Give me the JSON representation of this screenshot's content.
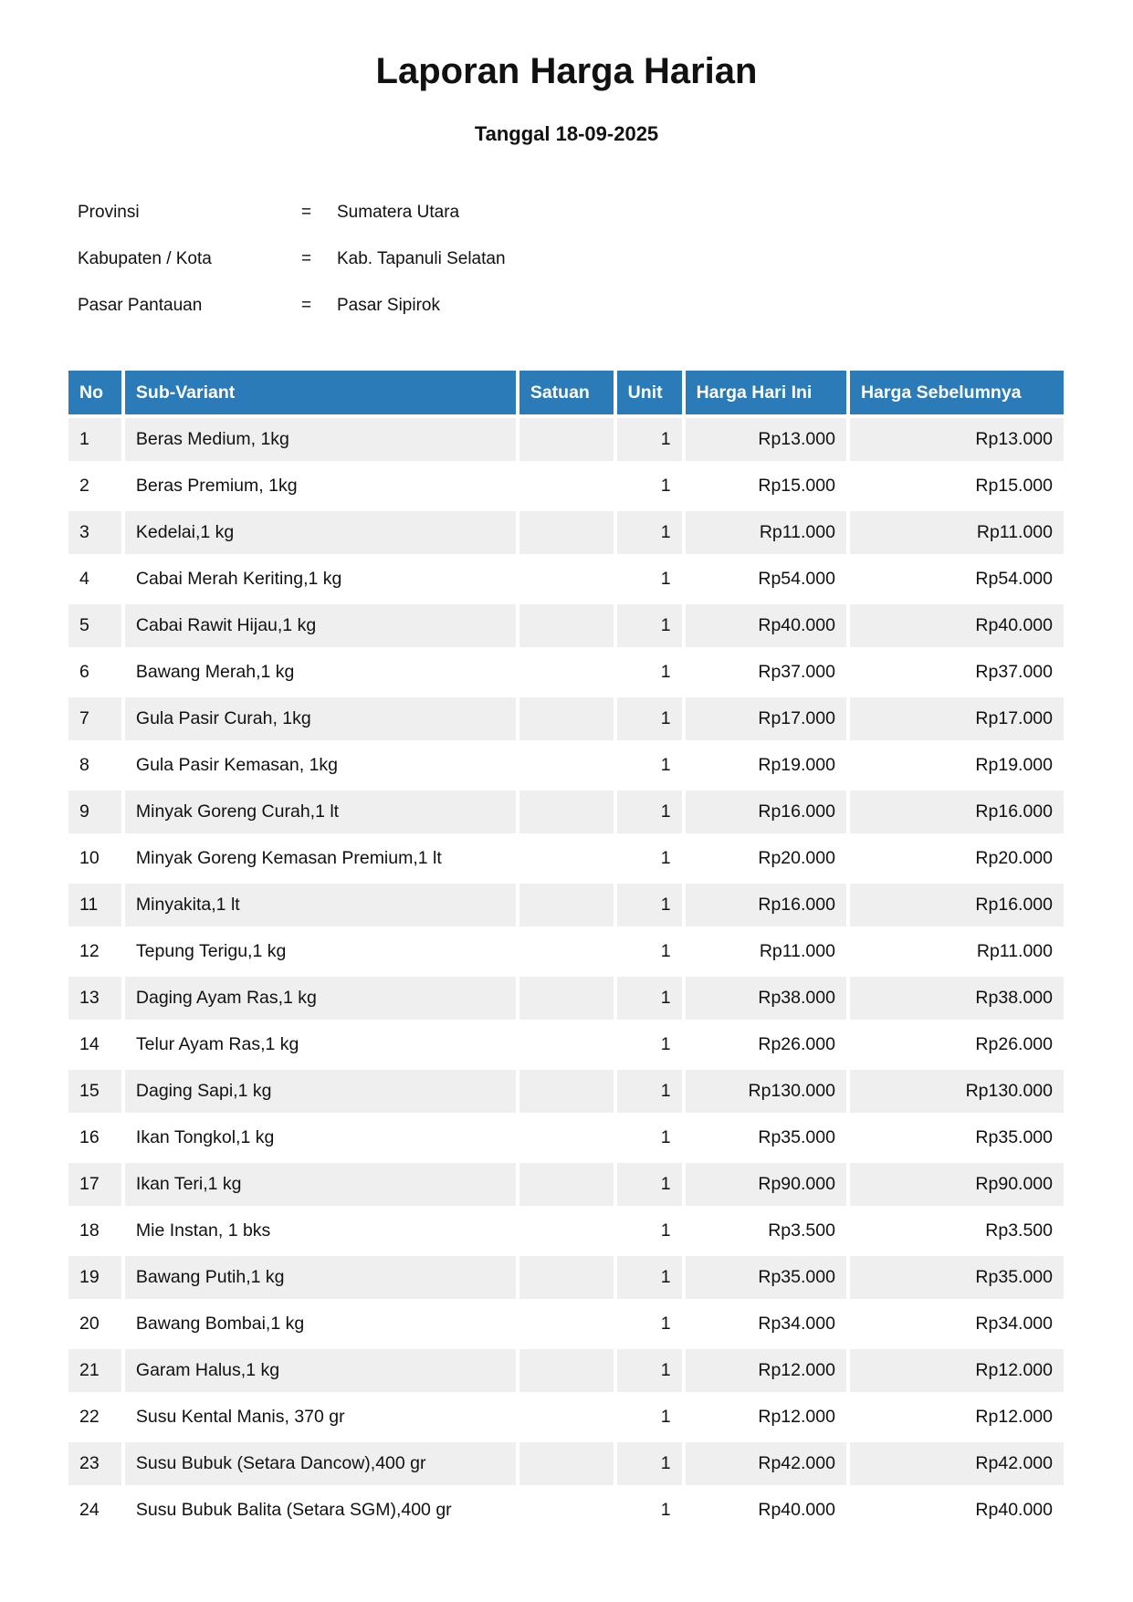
{
  "report": {
    "title": "Laporan Harga Harian",
    "date_line": "Tanggal 18-09-2025"
  },
  "info": [
    {
      "label": "Provinsi",
      "sep": "=",
      "value": "Sumatera Utara"
    },
    {
      "label": "Kabupaten / Kota",
      "sep": "=",
      "value": "Kab. Tapanuli Selatan"
    },
    {
      "label": "Pasar Pantauan",
      "sep": "=",
      "value": "Pasar Sipirok"
    }
  ],
  "table": {
    "header_color": "#2a7bb7",
    "columns": [
      "No",
      "Sub-Variant",
      "Satuan",
      "Unit",
      "Harga Hari Ini",
      "Harga Sebelumnya"
    ],
    "rows": [
      [
        "1",
        "Beras Medium, 1kg",
        "",
        "1",
        "Rp13.000",
        "Rp13.000"
      ],
      [
        "2",
        "Beras Premium, 1kg",
        "",
        "1",
        "Rp15.000",
        "Rp15.000"
      ],
      [
        "3",
        "Kedelai,1 kg",
        "",
        "1",
        "Rp11.000",
        "Rp11.000"
      ],
      [
        "4",
        "Cabai Merah Keriting,1 kg",
        "",
        "1",
        "Rp54.000",
        "Rp54.000"
      ],
      [
        "5",
        "Cabai Rawit Hijau,1 kg",
        "",
        "1",
        "Rp40.000",
        "Rp40.000"
      ],
      [
        "6",
        "Bawang Merah,1 kg",
        "",
        "1",
        "Rp37.000",
        "Rp37.000"
      ],
      [
        "7",
        "Gula Pasir Curah, 1kg",
        "",
        "1",
        "Rp17.000",
        "Rp17.000"
      ],
      [
        "8",
        "Gula Pasir Kemasan, 1kg",
        "",
        "1",
        "Rp19.000",
        "Rp19.000"
      ],
      [
        "9",
        "Minyak Goreng Curah,1 lt",
        "",
        "1",
        "Rp16.000",
        "Rp16.000"
      ],
      [
        "10",
        "Minyak Goreng Kemasan Premium,1 lt",
        "",
        "1",
        "Rp20.000",
        "Rp20.000"
      ],
      [
        "11",
        "Minyakita,1 lt",
        "",
        "1",
        "Rp16.000",
        "Rp16.000"
      ],
      [
        "12",
        "Tepung Terigu,1 kg",
        "",
        "1",
        "Rp11.000",
        "Rp11.000"
      ],
      [
        "13",
        "Daging Ayam Ras,1 kg",
        "",
        "1",
        "Rp38.000",
        "Rp38.000"
      ],
      [
        "14",
        "Telur Ayam Ras,1 kg",
        "",
        "1",
        "Rp26.000",
        "Rp26.000"
      ],
      [
        "15",
        "Daging Sapi,1 kg",
        "",
        "1",
        "Rp130.000",
        "Rp130.000"
      ],
      [
        "16",
        "Ikan Tongkol,1 kg",
        "",
        "1",
        "Rp35.000",
        "Rp35.000"
      ],
      [
        "17",
        "Ikan Teri,1 kg",
        "",
        "1",
        "Rp90.000",
        "Rp90.000"
      ],
      [
        "18",
        "Mie Instan, 1 bks",
        "",
        "1",
        "Rp3.500",
        "Rp3.500"
      ],
      [
        "19",
        "Bawang Putih,1 kg",
        "",
        "1",
        "Rp35.000",
        "Rp35.000"
      ],
      [
        "20",
        "Bawang Bombai,1 kg",
        "",
        "1",
        "Rp34.000",
        "Rp34.000"
      ],
      [
        "21",
        "Garam Halus,1 kg",
        "",
        "1",
        "Rp12.000",
        "Rp12.000"
      ],
      [
        "22",
        "Susu Kental Manis, 370 gr",
        "",
        "1",
        "Rp12.000",
        "Rp12.000"
      ],
      [
        "23",
        "Susu Bubuk (Setara Dancow),400 gr",
        "",
        "1",
        "Rp42.000",
        "Rp42.000"
      ],
      [
        "24",
        "Susu Bubuk Balita (Setara SGM),400 gr",
        "",
        "1",
        "Rp40.000",
        "Rp40.000"
      ]
    ]
  }
}
